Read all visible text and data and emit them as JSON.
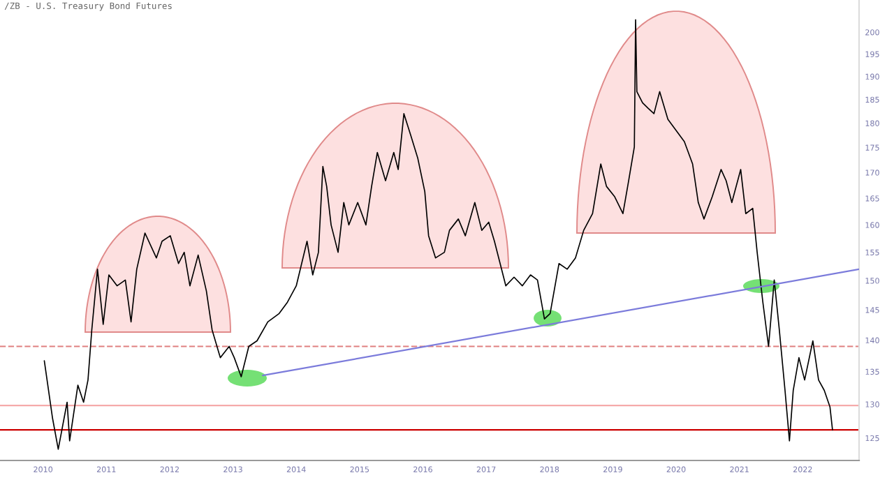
{
  "chart_data": {
    "type": "line",
    "title": "/ZB - U.S. Treasury Bond Futures",
    "log": true,
    "grid": false,
    "legend": false,
    "marker": "none",
    "line_style": "solid",
    "xlim": [
      2009.32,
      2022.89
    ],
    "xticks": [
      2010,
      2011,
      2012,
      2013,
      2014,
      2015,
      2016,
      2017,
      2018,
      2019,
      2020,
      2021,
      2022
    ],
    "ylim": [
      121.8,
      207.6
    ],
    "yticks": [
      125,
      130,
      135,
      140,
      145,
      150,
      155,
      160,
      165,
      170,
      175,
      180,
      185,
      190,
      195,
      200
    ],
    "series": [
      {
        "color": "#000000",
        "x": [
          2010.02,
          2010.15,
          2010.24,
          2010.38,
          2010.42,
          2010.55,
          2010.64,
          2010.71,
          2010.77,
          2010.86,
          2010.95,
          2011.04,
          2011.17,
          2011.3,
          2011.39,
          2011.48,
          2011.61,
          2011.79,
          2011.88,
          2012.01,
          2012.14,
          2012.23,
          2012.32,
          2012.45,
          2012.58,
          2012.67,
          2012.8,
          2012.94,
          2013.02,
          2013.13,
          2013.25,
          2013.38,
          2013.55,
          2013.73,
          2013.86,
          2014.0,
          2014.17,
          2014.26,
          2014.35,
          2014.42,
          2014.48,
          2014.55,
          2014.66,
          2014.75,
          2014.83,
          2014.97,
          2015.1,
          2015.19,
          2015.28,
          2015.41,
          2015.54,
          2015.61,
          2015.7,
          2015.81,
          2015.92,
          2016.03,
          2016.09,
          2016.2,
          2016.34,
          2016.42,
          2016.56,
          2016.67,
          2016.82,
          2016.93,
          2017.04,
          2017.13,
          2017.22,
          2017.31,
          2017.44,
          2017.57,
          2017.7,
          2017.81,
          2017.92,
          2018.01,
          2018.15,
          2018.28,
          2018.41,
          2018.54,
          2018.68,
          2018.81,
          2018.9,
          2019.03,
          2019.16,
          2019.25,
          2019.34,
          2019.36,
          2019.38,
          2019.47,
          2019.56,
          2019.65,
          2019.74,
          2019.87,
          2020.0,
          2020.13,
          2020.26,
          2020.35,
          2020.44,
          2020.57,
          2020.71,
          2020.79,
          2020.88,
          2021.02,
          2021.1,
          2021.21,
          2021.28,
          2021.37,
          2021.46,
          2021.55,
          2021.63,
          2021.72,
          2021.79,
          2021.85,
          2021.94,
          2022.03,
          2022.16,
          2022.25,
          2022.34,
          2022.43,
          2022.47
        ],
        "values": [
          136.7,
          127.9,
          123.4,
          130.3,
          124.6,
          132.9,
          130.3,
          133.7,
          141.7,
          152.0,
          142.6,
          151.0,
          149.1,
          150.1,
          143.0,
          152.0,
          158.5,
          154.0,
          157.0,
          158.0,
          153.0,
          155.0,
          149.1,
          154.5,
          148.2,
          141.7,
          137.2,
          139.0,
          137.2,
          134.2,
          139.0,
          139.9,
          143.0,
          144.4,
          146.3,
          149.1,
          157.0,
          151.0,
          155.0,
          171.2,
          167.3,
          160.0,
          155.0,
          164.2,
          160.0,
          164.2,
          160.0,
          167.3,
          174.0,
          168.4,
          174.0,
          170.6,
          182.0,
          177.4,
          172.8,
          166.3,
          158.0,
          154.0,
          155.0,
          159.0,
          161.1,
          158.0,
          164.2,
          159.0,
          160.5,
          157.0,
          153.0,
          149.1,
          150.6,
          149.1,
          151.0,
          150.1,
          143.5,
          144.4,
          153.0,
          152.0,
          154.0,
          159.0,
          162.1,
          171.7,
          167.3,
          165.3,
          162.1,
          168.4,
          175.1,
          202.9,
          186.7,
          184.3,
          183.1,
          182.0,
          186.7,
          180.8,
          178.5,
          176.2,
          171.7,
          164.2,
          161.1,
          165.3,
          170.6,
          168.4,
          164.2,
          170.6,
          162.1,
          163.1,
          155.0,
          146.3,
          139.0,
          150.1,
          141.7,
          132.1,
          124.6,
          132.1,
          137.2,
          133.7,
          139.9,
          133.7,
          132.1,
          129.6,
          126.2
        ]
      },
      {
        "type": "line",
        "color": "#7b7bdb",
        "x": [
          2013.47,
          2022.89
        ],
        "values": [
          134.4,
          152.0
        ]
      }
    ],
    "ref_lines": [
      {
        "axis": "y",
        "value": 126.2,
        "color": "#cc0000",
        "line_style": "solid"
      },
      {
        "axis": "y",
        "value": 129.8,
        "color": "#f4a0a0",
        "line_style": "solid"
      },
      {
        "axis": "y",
        "value": 139.0,
        "color": "#e08080",
        "line_style": "dashed"
      }
    ]
  }
}
